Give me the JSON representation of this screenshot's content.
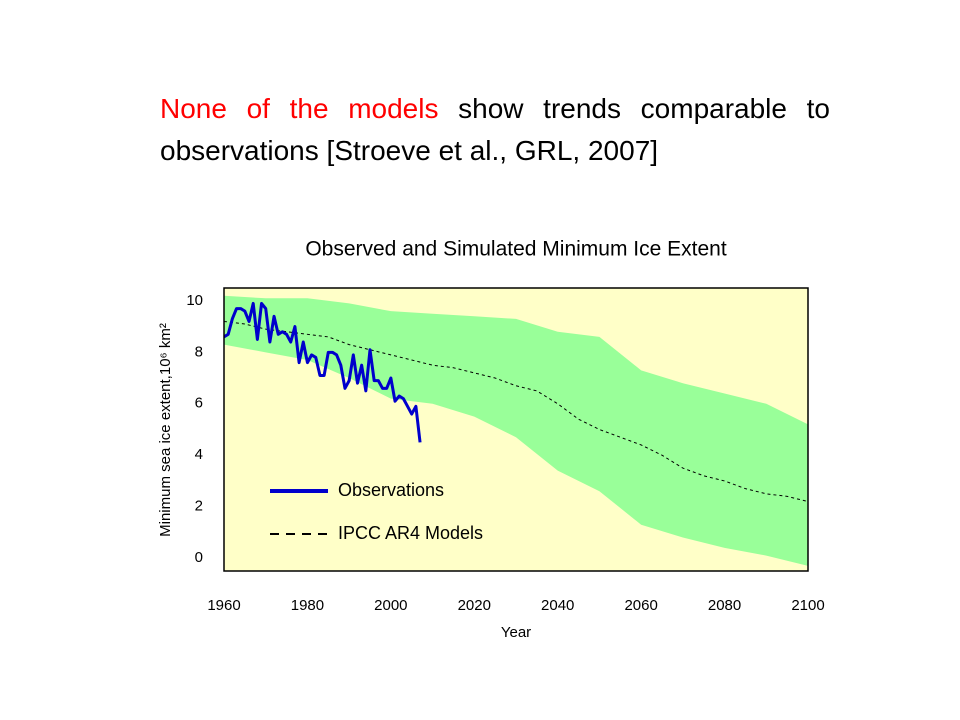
{
  "headline": [
    {
      "text": "None of the models",
      "color": "#ff0000"
    },
    {
      "text": " show trends comparable to observations [Stroeve et al., GRL, 2007]",
      "color": "#000000"
    }
  ],
  "chart_data": {
    "type": "line",
    "title": "Observed and Simulated Minimum Ice Extent",
    "xlabel": "Year",
    "ylabel": "Minimum sea ice extent,10⁶ km²",
    "xlim": [
      1960,
      2100
    ],
    "xticks": [
      1960,
      1980,
      2000,
      2020,
      2040,
      2060,
      2080,
      2100
    ],
    "ylim": [
      -0.5,
      10.5
    ],
    "yticks": [
      0,
      2,
      4,
      6,
      8,
      10
    ],
    "background": "#ffffc8",
    "band": {
      "color": "#99ff99",
      "x": [
        1960,
        1970,
        1980,
        1990,
        2000,
        2010,
        2020,
        2030,
        2040,
        2050,
        2060,
        2070,
        2080,
        2090,
        2100
      ],
      "upper": [
        10.2,
        10.1,
        10.1,
        9.9,
        9.6,
        9.5,
        9.4,
        9.3,
        8.8,
        8.6,
        7.3,
        6.8,
        6.4,
        6.0,
        5.2
      ],
      "lower": [
        8.3,
        8.0,
        7.7,
        7.0,
        6.2,
        6.0,
        5.5,
        4.7,
        3.4,
        2.6,
        1.3,
        0.8,
        0.4,
        0.1,
        -0.3
      ]
    },
    "series": [
      {
        "name": "Observations",
        "color": "#0000cc",
        "dashed": false,
        "x": [
          1960,
          1961,
          1962,
          1963,
          1964,
          1965,
          1966,
          1967,
          1968,
          1969,
          1970,
          1971,
          1972,
          1973,
          1974,
          1975,
          1976,
          1977,
          1978,
          1979,
          1980,
          1981,
          1982,
          1983,
          1984,
          1985,
          1986,
          1987,
          1988,
          1989,
          1990,
          1991,
          1992,
          1993,
          1994,
          1995,
          1996,
          1997,
          1998,
          1999,
          2000,
          2001,
          2002,
          2003,
          2004,
          2005,
          2006,
          2007
        ],
        "values": [
          8.6,
          8.7,
          9.3,
          9.7,
          9.7,
          9.6,
          9.2,
          9.9,
          8.5,
          9.9,
          9.7,
          8.4,
          9.4,
          8.7,
          8.8,
          8.7,
          8.4,
          9.0,
          7.6,
          8.4,
          7.6,
          7.9,
          7.8,
          7.1,
          7.1,
          8.0,
          8.0,
          7.9,
          7.5,
          6.6,
          6.9,
          7.9,
          6.8,
          7.5,
          6.5,
          8.1,
          6.9,
          6.9,
          6.6,
          6.6,
          7.0,
          6.1,
          6.3,
          6.2,
          5.9,
          5.6,
          5.9,
          4.5
        ]
      },
      {
        "name": "IPCC AR4 Models",
        "color": "#000000",
        "dashed": true,
        "x": [
          1960,
          1965,
          1970,
          1975,
          1980,
          1985,
          1990,
          1995,
          2000,
          2005,
          2010,
          2015,
          2020,
          2025,
          2030,
          2035,
          2040,
          2045,
          2050,
          2055,
          2060,
          2065,
          2070,
          2075,
          2080,
          2085,
          2090,
          2095,
          2100
        ],
        "values": [
          9.2,
          9.1,
          8.9,
          8.8,
          8.7,
          8.6,
          8.3,
          8.1,
          7.9,
          7.7,
          7.5,
          7.4,
          7.2,
          7.0,
          6.7,
          6.5,
          6.0,
          5.4,
          5.0,
          4.7,
          4.4,
          4.0,
          3.5,
          3.2,
          3.0,
          2.7,
          2.5,
          2.4,
          2.2
        ]
      }
    ]
  }
}
